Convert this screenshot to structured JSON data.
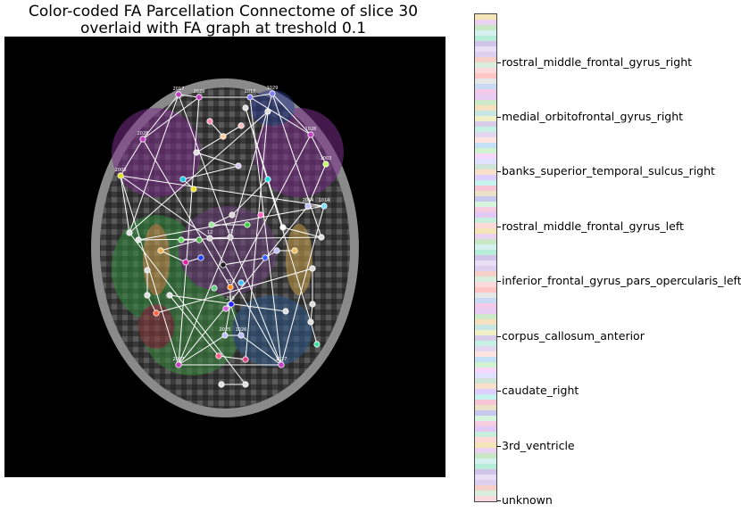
{
  "figure": {
    "title_line1": "Color-coded FA Parcellation Connectome of slice 30",
    "title_line2": "overlaid with FA graph at treshold 0.1"
  },
  "colorbar": {
    "labels": [
      "rostral_middle_frontal_gyrus_right",
      "medial_orbitofrontal_gyrus_right",
      "banks_superior_temporal_sulcus_right",
      "rostral_middle_frontal_gyrus_left",
      "inferior_frontal_gyrus_pars_opercularis_left",
      "corpus_callosum_anterior",
      "caudate_right",
      "3rd_ventricle",
      "unknown"
    ],
    "colors": [
      "#f5e6b8",
      "#e9d3f0",
      "#cbe8c4",
      "#d4f0ef",
      "#b8eed9",
      "#d0c4e8",
      "#e8dff5",
      "#dccff0",
      "#f4d0c6",
      "#d9efe0",
      "#fadadd",
      "#ffc6c6",
      "#e7e7e7",
      "#c9d9f2",
      "#f2c9e8",
      "#e8ccf3",
      "#cde9c7",
      "#f3e1bf",
      "#c6e6e6",
      "#f0f0c8",
      "#d8ceea",
      "#c6f0e4",
      "#e5d6f2",
      "#ffe4e1",
      "#c4e0f5",
      "#d1f2d1",
      "#f7d7f7",
      "#e0e0ff",
      "#cfe4d6",
      "#f9e0c8",
      "#ddd0ff",
      "#c8f2ef",
      "#f6c6d6",
      "#e9e2c6",
      "#c9c9f0",
      "#d5f5dc",
      "#f5cce0",
      "#e1c8f5",
      "#c8eedd",
      "#ffd8d8"
    ],
    "edge_color": "#ffffff"
  },
  "graph": {
    "node_labels": [
      {
        "id": "n0",
        "text": "2017"
      },
      {
        "id": "n1",
        "text": "2029"
      },
      {
        "id": "n2",
        "text": "1017"
      },
      {
        "id": "n3",
        "text": "1029"
      },
      {
        "id": "n4",
        "text": "2028"
      },
      {
        "id": "n5",
        "text": "1028"
      },
      {
        "id": "n6",
        "text": "2003"
      },
      {
        "id": "n7",
        "text": "1003"
      },
      {
        "id": "n8",
        "text": "2014"
      },
      {
        "id": "n9",
        "text": "1014"
      },
      {
        "id": "n10",
        "text": "51"
      },
      {
        "id": "n11",
        "text": "12"
      },
      {
        "id": "n12",
        "text": "254"
      },
      {
        "id": "n13",
        "text": "255"
      },
      {
        "id": "n14",
        "text": "2025"
      },
      {
        "id": "n15",
        "text": "1026"
      },
      {
        "id": "n16",
        "text": "2027"
      },
      {
        "id": "n17",
        "text": "1027"
      }
    ]
  }
}
